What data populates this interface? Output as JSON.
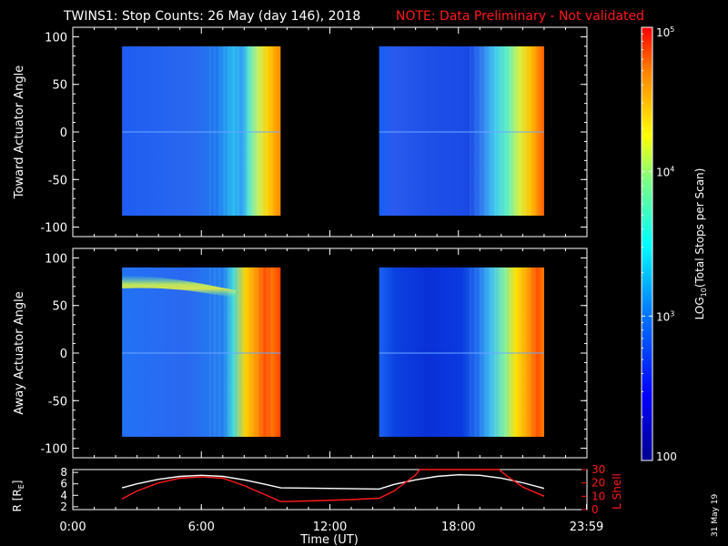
{
  "title": {
    "main": "TWINS1: Stop Counts: 26 May (day 146), 2018",
    "note": "NOTE: Data Preliminary - Not validated"
  },
  "colors": {
    "background": "#000000",
    "axis": "#ffffff",
    "note": "#ff1a1a",
    "r_line": "#ffffff",
    "l_line": "#ff1a1a"
  },
  "footer": {
    "date_stamp": "31 May 19"
  },
  "chart_data": [
    {
      "type": "heatmap",
      "title": "",
      "ylabel": "Toward Actuator Angle",
      "ylim": [
        -110,
        110
      ],
      "yticks": [
        100,
        50,
        0,
        -50,
        -100
      ],
      "xlim": [
        0,
        24
      ],
      "data_windows_hours": [
        [
          2.3,
          9.7
        ],
        [
          14.3,
          22.0
        ]
      ],
      "angle_range": [
        -88,
        90
      ],
      "profile_note": "counts increase strongly toward end of each window"
    },
    {
      "type": "heatmap",
      "title": "",
      "ylabel": "Away Actuator Angle",
      "ylim": [
        -110,
        110
      ],
      "yticks": [
        100,
        50,
        0,
        -50,
        -100
      ],
      "xlim": [
        0,
        24
      ],
      "data_windows_hours": [
        [
          2.3,
          9.7
        ],
        [
          14.3,
          22.0
        ]
      ],
      "angle_range": [
        -88,
        90
      ],
      "profile_note": "high-count band near +75 deg in first window"
    },
    {
      "type": "line",
      "xlabel": "Time (UT)",
      "xticks": [
        "0:00",
        "6:00",
        "12:00",
        "18:00",
        "23:59"
      ],
      "xtick_hours": [
        0,
        6,
        12,
        18,
        23.98
      ],
      "left_axis": {
        "label": "R [R",
        "label_sub": "E",
        "label_end": "]",
        "ticks": [
          "8",
          "6",
          "4",
          "2"
        ],
        "ylim": [
          1.5,
          8.5
        ]
      },
      "right_axis": {
        "label": "L Shell",
        "ticks": [
          "30",
          "20",
          "10",
          "0"
        ],
        "ylim": [
          0,
          30
        ]
      },
      "series": [
        {
          "name": "R",
          "axis": "left",
          "x": [
            2.3,
            3,
            4,
            5,
            6,
            7,
            8,
            9,
            9.7,
            14.3,
            15,
            16,
            17,
            18,
            19,
            20,
            21,
            22
          ],
          "y": [
            5.3,
            6.0,
            6.8,
            7.3,
            7.5,
            7.3,
            6.7,
            5.9,
            5.3,
            5.1,
            5.9,
            6.7,
            7.3,
            7.6,
            7.5,
            7.0,
            6.2,
            5.2
          ]
        },
        {
          "name": "L Shell",
          "axis": "right",
          "x": [
            2.3,
            3,
            4,
            5,
            6,
            7,
            8,
            9,
            9.7,
            11,
            13,
            14.3,
            15,
            16,
            16.2,
            19.9,
            20.2,
            21,
            22
          ],
          "y": [
            8.0,
            14,
            20,
            23.5,
            24.5,
            23.5,
            18,
            11,
            6,
            6.5,
            7.5,
            8.5,
            14,
            26,
            30,
            30,
            26,
            17,
            10
          ]
        }
      ]
    },
    {
      "type": "colorbar",
      "label": "LOG",
      "label_sub": "10",
      "label_end": "(Total Stops per Scan)",
      "scale": "log",
      "range": [
        100,
        100000
      ],
      "ticks": [
        {
          "value": 100,
          "base": "100",
          "exp": ""
        },
        {
          "value": 1000,
          "base": "10",
          "exp": "3"
        },
        {
          "value": 10000,
          "base": "10",
          "exp": "4"
        },
        {
          "value": 100000,
          "base": "10",
          "exp": "5"
        }
      ]
    }
  ]
}
